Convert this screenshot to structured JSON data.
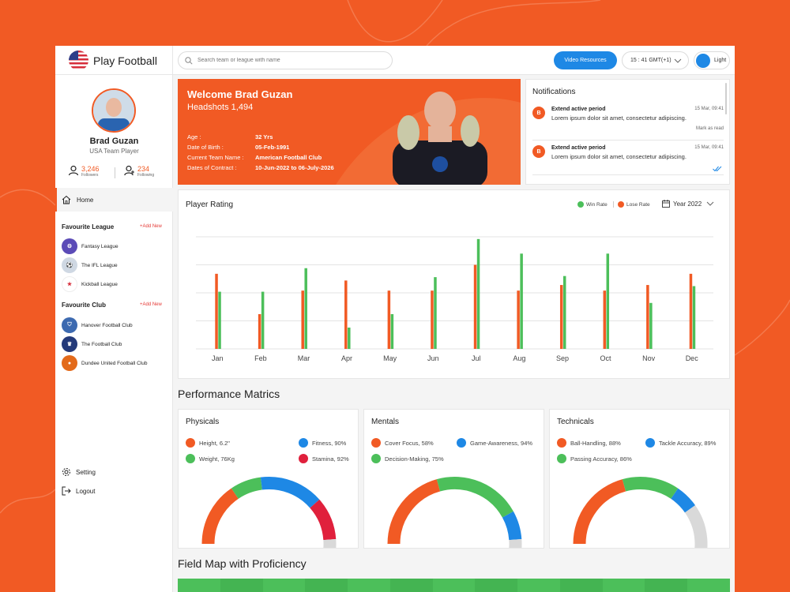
{
  "app": {
    "name": "Play Football"
  },
  "topbar": {
    "search_placeholder": "Search team or league with name",
    "video_label": "Video Resources",
    "time_label": "15 : 41 GMT(+1)",
    "theme_label": "Light"
  },
  "profile": {
    "name": "Brad Guzan",
    "role": "USA Team Player",
    "followers_count": "3,246",
    "followers_label": "Followers",
    "following_count": "234",
    "following_label": "Following"
  },
  "nav": {
    "home": "Home",
    "setting": "Setting",
    "logout": "Logout"
  },
  "favourite_league": {
    "title": "Favourite League",
    "add_label": "+Add New",
    "items": [
      {
        "name": "Fantasy League",
        "icon": "fantasy-league-logo",
        "color": "#5b4bb7"
      },
      {
        "name": "The IFL League",
        "icon": "ifl-league-logo",
        "color": "#cfd8e3"
      },
      {
        "name": "Kickball League",
        "icon": "kickball-league-logo",
        "color": "#ffffff"
      }
    ]
  },
  "favourite_club": {
    "title": "Favourite Club",
    "add_label": "+Add New",
    "items": [
      {
        "name": "Hanover Football Club",
        "icon": "hanover-club-logo",
        "color": "#3d6ab0"
      },
      {
        "name": "The Football Club",
        "icon": "football-club-logo",
        "color": "#243a7a"
      },
      {
        "name": "Dundee United Football Club",
        "icon": "dundee-club-logo",
        "color": "#e36a1a"
      }
    ]
  },
  "welcome": {
    "title": "Welcome Brad Guzan",
    "headshots_label": "Headshots",
    "headshots_value": "1,494",
    "info": [
      {
        "key": "Age :",
        "value": "32 Yrs"
      },
      {
        "key": "Date of Birth :",
        "value": "05-Feb-1991"
      },
      {
        "key": "Current Team Name :",
        "value": "American Football Club"
      },
      {
        "key": "Dates of Contract :",
        "value": "10-Jun-2022 to 06-July-2026"
      }
    ]
  },
  "notifications": {
    "title": "Notifications",
    "items": [
      {
        "badge": "B",
        "title": "Extend active period",
        "time": "15 Mar, 09:41",
        "body": "Lorem ipsum dolor sit amet, consectetur adipiscing.",
        "action": "Mark as read"
      },
      {
        "badge": "B",
        "title": "Extend active period",
        "time": "15 Mar, 09:41",
        "body": "Lorem ipsum dolor sit amet, consectetur adipiscing.",
        "action": ""
      }
    ]
  },
  "player_rating": {
    "title": "Player Rating",
    "legend_win": "Win Rate",
    "legend_lose": "Lose Rate",
    "year_label": "Year 2022"
  },
  "chart_data": {
    "type": "bar",
    "title": "Player Rating",
    "categories": [
      "Jan",
      "Feb",
      "Mar",
      "Apr",
      "May",
      "Jun",
      "Jul",
      "Aug",
      "Sep",
      "Oct",
      "Nov",
      "Dec"
    ],
    "series": [
      {
        "name": "Lose Rate",
        "color": "#f15a24",
        "values": [
          67,
          31,
          52,
          61,
          52,
          52,
          75,
          52,
          57,
          52,
          57,
          67
        ]
      },
      {
        "name": "Win Rate",
        "color": "#4cbf5a",
        "values": [
          51,
          51,
          72,
          19,
          31,
          64,
          98,
          85,
          65,
          85,
          41,
          56
        ]
      }
    ],
    "ylim": [
      0,
      100
    ],
    "grid": true,
    "legend_position": "top-right"
  },
  "performance": {
    "title": "Performance Matrics",
    "cards": [
      {
        "title": "Physicals",
        "legend": [
          {
            "label": "Height, 6.2\"",
            "color": "#f15a24"
          },
          {
            "label": "Fitness, 90%",
            "color": "#1e88e5"
          },
          {
            "label": "Weight, 76Kg",
            "color": "#4cbf5a"
          },
          {
            "label": "Stamina, 92%",
            "color": "#e0203c"
          }
        ],
        "segments": [
          {
            "color": "#f15a24",
            "fraction": 0.27
          },
          {
            "color": "#4cbf5a",
            "fraction": 0.13
          },
          {
            "color": "#1e88e5",
            "fraction": 0.27
          },
          {
            "color": "#e0203c",
            "fraction": 0.18
          },
          {
            "color": "#d9d9d9",
            "fraction": 0.15
          }
        ]
      },
      {
        "title": "Mentals",
        "legend": [
          {
            "label": "Cover Focus, 58%",
            "color": "#f15a24"
          },
          {
            "label": "Game-Awareness, 94%",
            "color": "#1e88e5"
          },
          {
            "label": "Decision-Making, 75%",
            "color": "#4cbf5a"
          }
        ],
        "segments": [
          {
            "color": "#f15a24",
            "fraction": 0.36
          },
          {
            "color": "#4cbf5a",
            "fraction": 0.37
          },
          {
            "color": "#1e88e5",
            "fraction": 0.12
          },
          {
            "color": "#d9d9d9",
            "fraction": 0.15
          }
        ]
      },
      {
        "title": "Technicals",
        "legend": [
          {
            "label": "Ball-Handling, 88%",
            "color": "#f15a24"
          },
          {
            "label": "Tackle Accuracy, 89%",
            "color": "#1e88e5"
          },
          {
            "label": "Passing Accuracy, 86%",
            "color": "#4cbf5a"
          }
        ],
        "segments": [
          {
            "color": "#f15a24",
            "fraction": 0.36
          },
          {
            "color": "#4cbf5a",
            "fraction": 0.24
          },
          {
            "color": "#1e88e5",
            "fraction": 0.1
          },
          {
            "color": "#d9d9d9",
            "fraction": 0.3
          }
        ]
      }
    ]
  },
  "field_map": {
    "title": "Field Map with Proficiency"
  },
  "colors": {
    "accent": "#f15a24",
    "blue": "#1e88e5",
    "green": "#4cbf5a",
    "red": "#e0203c"
  }
}
